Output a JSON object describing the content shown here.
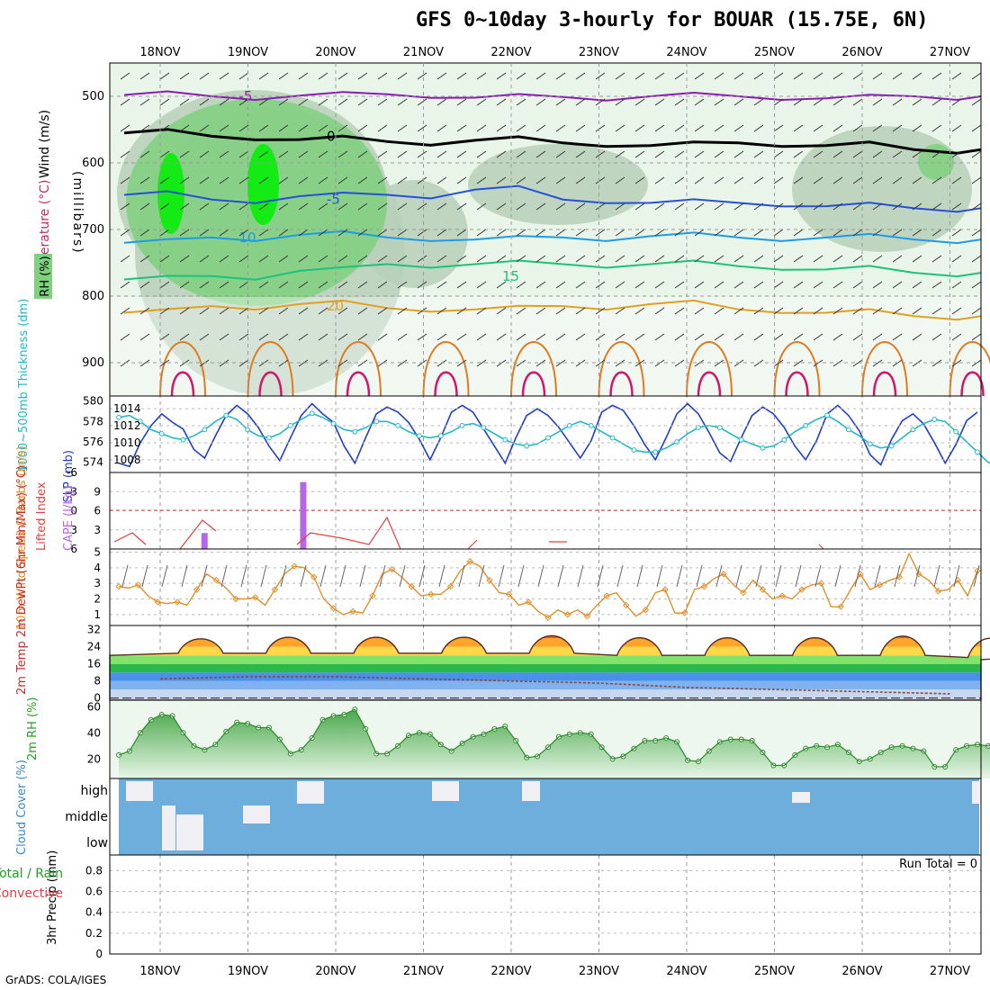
{
  "header": {
    "title": "GFS 0~10day 3-hourly for BOUAR (15.75E, 6N)",
    "credit": "GrADS: COLA/IGES"
  },
  "chart_data": [
    {
      "type": "heatmap",
      "panel": "upper-air",
      "x_dates": [
        "18NOV",
        "19NOV",
        "20NOV",
        "21NOV",
        "22NOV",
        "23NOV",
        "24NOV",
        "25NOV",
        "26NOV",
        "27NOV"
      ],
      "ylabel": "(millibars)",
      "side_labels": [
        "Wind (m/s)",
        "Temperature (°C)",
        "RH (%)"
      ],
      "y_ticks": [
        500,
        600,
        700,
        800,
        900
      ],
      "ylim": [
        1000,
        450
      ],
      "y_scale": "log-pressure",
      "temperature_contours": [
        {
          "label": "-5",
          "color": "#8a1ab3",
          "level_mb": [
            498,
            500,
            499,
            497,
            502,
            501,
            500,
            500,
            503,
            500
          ]
        },
        {
          "label": "0",
          "color": "#000000",
          "level_mb": [
            555,
            560,
            565,
            568,
            566,
            570,
            574,
            570,
            574,
            580
          ]
        },
        {
          "label": "-5",
          "color": "#2450d8",
          "level_mb": [
            648,
            655,
            650,
            648,
            640,
            655,
            660,
            660,
            665,
            668
          ]
        },
        {
          "label": "10",
          "color": "#1e9be6",
          "level_mb": [
            720,
            712,
            708,
            712,
            715,
            712,
            710,
            712,
            712,
            715
          ]
        },
        {
          "label": "15",
          "color": "#1cc27a",
          "level_mb": [
            775,
            770,
            762,
            752,
            752,
            752,
            752,
            755,
            760,
            765
          ]
        },
        {
          "label": "20",
          "color": "#e0a020",
          "level_mb": [
            825,
            815,
            812,
            818,
            820,
            815,
            812,
            820,
            825,
            830
          ]
        }
      ],
      "rh_shading_levels": [
        30,
        50,
        70,
        90
      ],
      "rh_colors": [
        "#eaf5ea",
        "#b7cfb9",
        "#7fd07f",
        "#00ee00"
      ]
    },
    {
      "type": "line",
      "panel": "thickness-slp",
      "ylabel_left": "1000~500mb Thickness (dm)",
      "ylabel_right": "SLP (mb)",
      "yticks_left": [
        574,
        576,
        578,
        580
      ],
      "yticks_right": [
        1008,
        1010,
        1012,
        1014
      ],
      "series": [
        {
          "name": "SLP (mb)",
          "color": "#2040c0",
          "axis": "right",
          "values": [
            1007.6,
            1007.2,
            1010.0,
            1012.0,
            1013.4,
            1012.4,
            1011.6,
            1009.2,
            1008.2,
            1010.8,
            1013.2,
            1014.4,
            1013.4,
            1011.8,
            1009.6,
            1007.9,
            1010.6,
            1013.2,
            1014.6,
            1013.4,
            1012.4,
            1009.6,
            1007.6,
            1010.6,
            1013.4,
            1014.2,
            1013.6,
            1012.4,
            1010.4,
            1008.0,
            1010.6,
            1013.6,
            1014.4,
            1013.6,
            1011.6,
            1009.6,
            1007.6,
            1010.6,
            1013.2,
            1014.0,
            1013.2,
            1011.8,
            1010.0,
            1008.2,
            1010.2,
            1013.6,
            1014.4,
            1013.8,
            1012.0,
            1009.8,
            1008.0,
            1010.6,
            1013.4,
            1014.6,
            1013.4,
            1011.2,
            1008.8,
            1007.8,
            1010.6,
            1013.2,
            1014.2,
            1013.4,
            1011.8,
            1009.6,
            1008.0,
            1010.2,
            1013.4,
            1014.4,
            1013.2,
            1011.4,
            1008.6,
            1007.4,
            1010.4,
            1012.6,
            1013.4,
            1012.2,
            1010.0,
            1007.6,
            1009.8,
            1012.6,
            1013.6
          ]
        },
        {
          "name": "1000~500mb Thickness (dm)",
          "color": "#22b8c8",
          "axis": "left",
          "values": [
            578.4,
            578.6,
            578.0,
            577.2,
            576.8,
            576.4,
            576.2,
            576.6,
            577.2,
            578.0,
            578.6,
            578.2,
            577.2,
            576.6,
            576.4,
            576.8,
            577.6,
            578.2,
            578.8,
            578.4,
            577.8,
            577.2,
            577.0,
            577.4,
            578.0,
            578.0,
            577.6,
            577.0,
            576.6,
            576.4,
            576.6,
            577.0,
            577.6,
            577.8,
            577.4,
            576.8,
            576.2,
            575.8,
            575.6,
            575.8,
            576.4,
            577.0,
            577.6,
            578.0,
            577.6,
            577.0,
            576.4,
            575.8,
            575.2,
            575.0,
            575.0,
            575.4,
            576.0,
            576.8,
            577.4,
            577.6,
            577.4,
            576.8,
            576.2,
            575.8,
            575.4,
            575.6,
            576.2,
            577.0,
            577.6,
            578.2,
            578.6,
            578.0,
            577.2,
            576.6,
            575.8,
            575.4,
            575.6,
            576.4,
            577.2,
            577.8,
            578.2,
            578.0,
            577.0,
            576.0,
            575.0,
            574.0,
            573.6,
            574.0
          ]
        }
      ]
    },
    {
      "type": "bar",
      "panel": "stability",
      "ylabel_left": "Lifted Index",
      "ylabel_right": "CAPE (J/kg)",
      "yticks_left": [
        "6",
        "3",
        "0",
        "-3",
        "-6"
      ],
      "yticks_right": [
        3,
        6,
        9
      ],
      "cape_bars": [
        {
          "date": "18NOV",
          "hour": 12,
          "value": 2.5
        },
        {
          "date": "19NOV",
          "hour": 15,
          "value": 10.5
        }
      ],
      "lifted_index_reference": 0
    },
    {
      "type": "line",
      "panel": "wind10m",
      "ylabel": "10m Wind Speed & Barbs (m/s)",
      "yticks": [
        1,
        2,
        3,
        4,
        5
      ],
      "series": [
        {
          "name": "Speed",
          "color": "#e0902a",
          "values": [
            2.8,
            2.7,
            2.9,
            2.2,
            1.8,
            1.7,
            1.8,
            1.6,
            2.6,
            3.6,
            3.2,
            2.7,
            2.0,
            2.0,
            2.1,
            1.6,
            2.6,
            3.6,
            4.1,
            4.0,
            3.4,
            2.0,
            1.4,
            1.0,
            1.2,
            1.1,
            2.2,
            3.6,
            3.9,
            3.4,
            2.8,
            2.2,
            2.3,
            2.3,
            2.8,
            3.8,
            4.4,
            4.1,
            3.2,
            2.4,
            2.3,
            1.6,
            1.8,
            1.2,
            0.8,
            1.3,
            1.0,
            1.3,
            0.9,
            1.6,
            2.2,
            2.4,
            1.6,
            0.9,
            1.3,
            2.4,
            2.6,
            1.1,
            1.1,
            2.6,
            2.8,
            3.3,
            3.6,
            2.9,
            2.4,
            3.2,
            2.6,
            2.0,
            2.2,
            2.0,
            2.6,
            2.9,
            3.0,
            1.5,
            1.5,
            2.6,
            3.6,
            2.6,
            2.9,
            3.2,
            3.4,
            4.9,
            3.6,
            3.2,
            2.5,
            2.6,
            3.2,
            2.2,
            3.8
          ]
        }
      ]
    },
    {
      "type": "area",
      "panel": "temp2m",
      "ylabel": "2m Temp 2m DewPt (6hr Min/Max) (°C)",
      "yticks": [
        0,
        8,
        16,
        24,
        32
      ],
      "daily_max": [
        30,
        31,
        31,
        31,
        32,
        31,
        31,
        31,
        32,
        31
      ],
      "daily_min": [
        20,
        20,
        20,
        20,
        20,
        19,
        19,
        19,
        19,
        18
      ],
      "dewpoint_approx": [
        9,
        10,
        10,
        9,
        8,
        7,
        5,
        4,
        3,
        2
      ]
    },
    {
      "type": "area",
      "panel": "rh2m",
      "ylabel": "2m RH (%)",
      "yticks": [
        20,
        40,
        60
      ],
      "values": [
        23,
        26,
        40,
        50,
        54,
        53,
        40,
        30,
        27,
        31,
        41,
        48,
        47,
        44,
        44,
        35,
        24,
        27,
        36,
        50,
        53,
        54,
        58,
        43,
        24,
        24,
        30,
        38,
        40,
        39,
        31,
        26,
        32,
        37,
        39,
        43,
        45,
        34,
        21,
        22,
        29,
        37,
        39,
        40,
        39,
        29,
        20,
        22,
        28,
        34,
        34,
        36,
        33,
        19,
        18,
        26,
        33,
        35,
        35,
        34,
        25,
        15,
        15,
        23,
        28,
        30,
        29,
        31,
        25,
        18,
        20,
        25,
        29,
        30,
        28,
        26,
        14,
        14,
        27,
        30,
        31,
        30,
        33
      ]
    },
    {
      "type": "bar",
      "panel": "cloud",
      "ylabel": "Cloud Cover (%)",
      "y_categories": [
        "high",
        "middle",
        "low"
      ],
      "cloud_color": "#6eaedc"
    },
    {
      "type": "bar",
      "panel": "precip",
      "ylabel": "3hr Precip (mm)",
      "left_labels": [
        "Total / Rain",
        "Convective"
      ],
      "yticks": [
        0,
        0.2,
        0.4,
        0.6,
        0.8
      ],
      "run_total_label": "Run Total = 0",
      "values": []
    }
  ]
}
